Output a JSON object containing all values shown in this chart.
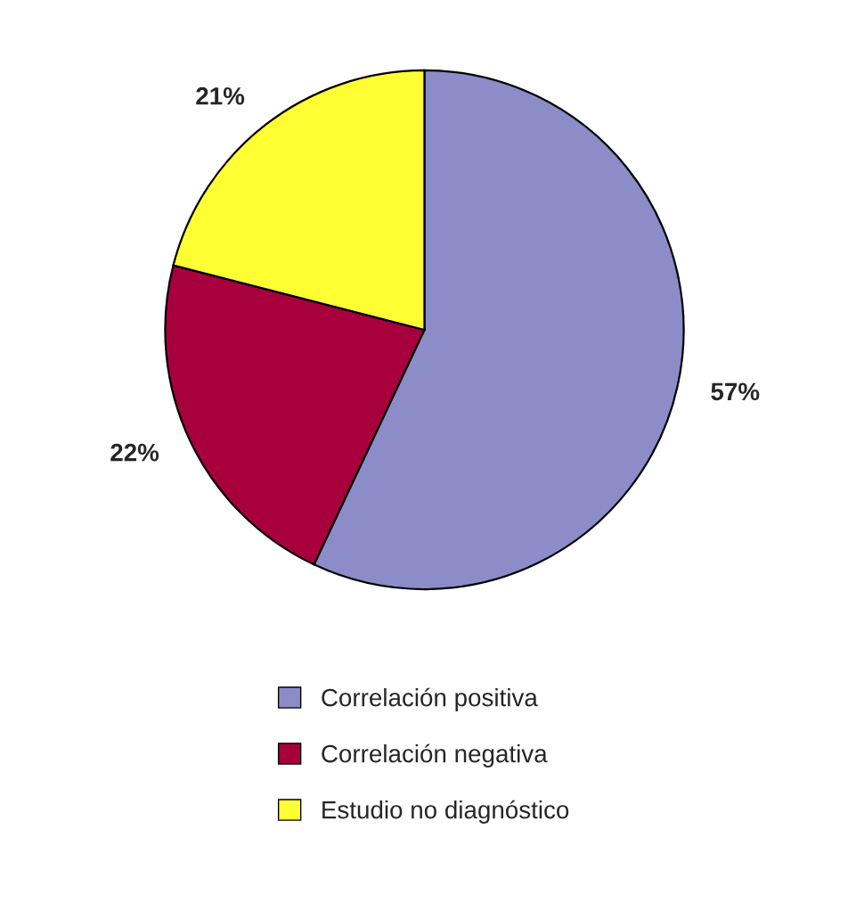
{
  "chart_data": {
    "type": "pie",
    "categories": [
      "Correlación positiva",
      "Correlación negativa",
      "Estudio no diagnóstico"
    ],
    "values": [
      57,
      22,
      21
    ],
    "colors": [
      "#8c8cc8",
      "#a8003c",
      "#ffff33"
    ],
    "value_labels": [
      "57%",
      "22%",
      "21%"
    ],
    "legend": "bottom"
  }
}
